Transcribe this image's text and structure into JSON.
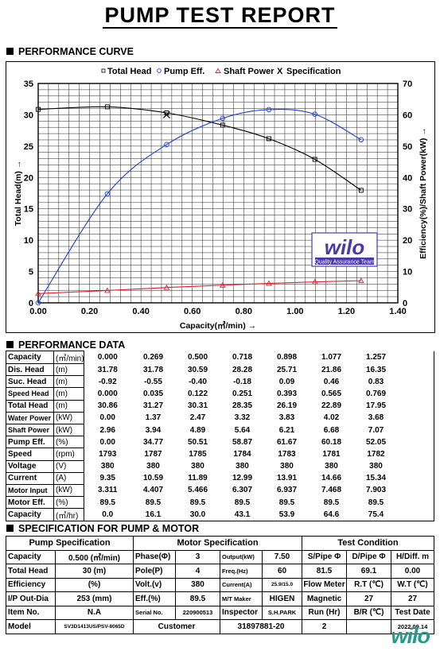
{
  "title": "PUMP TEST REPORT",
  "sections": {
    "curve": "PERFORMANCE CURVE",
    "data": "PERFORMANCE DATA",
    "spec": "SPECIFICATION FOR PUMP & MOTOR"
  },
  "chart_data": {
    "type": "line",
    "legend": [
      "Total Head",
      "Pump Eff.",
      "Shaft Power",
      "Specification"
    ],
    "legend_placement": "top",
    "xlabel": "Capacity(㎥/min) →",
    "ylabel": "Total Head(m) →",
    "y2label": "Efficiency(%)/Shaft Power(kW) →",
    "xlim": [
      0,
      1.4
    ],
    "ylim": [
      0,
      35
    ],
    "y2lim": [
      0,
      70
    ],
    "x_ticks": [
      "0.00",
      "0.20",
      "0.40",
      "0.60",
      "0.80",
      "1.00",
      "1.20",
      "1.40"
    ],
    "y_ticks": [
      "0",
      "5",
      "10",
      "15",
      "20",
      "25",
      "30",
      "35"
    ],
    "y2_ticks": [
      "0",
      "10",
      "20",
      "30",
      "40",
      "50",
      "60",
      "70"
    ],
    "grid": true,
    "series": [
      {
        "name": "Total Head",
        "axis": "left",
        "color": "#000000",
        "marker": "square",
        "x": [
          0.0,
          0.269,
          0.5,
          0.718,
          0.898,
          1.077,
          1.257
        ],
        "values": [
          30.86,
          31.27,
          30.31,
          28.35,
          26.19,
          22.89,
          17.95
        ]
      },
      {
        "name": "Pump Eff.",
        "axis": "right",
        "color": "#1e3cdc",
        "marker": "circle",
        "x": [
          0.0,
          0.269,
          0.5,
          0.718,
          0.898,
          1.077,
          1.257
        ],
        "values": [
          0.0,
          34.77,
          50.51,
          58.87,
          61.67,
          60.18,
          52.05
        ]
      },
      {
        "name": "Shaft Power",
        "axis": "right",
        "color": "#e0202a",
        "marker": "triangle",
        "x": [
          0.0,
          0.269,
          0.5,
          0.718,
          0.898,
          1.077,
          1.257
        ],
        "values": [
          2.96,
          3.94,
          4.89,
          5.64,
          6.21,
          6.68,
          7.07
        ]
      }
    ],
    "specification_point": {
      "x": 0.5,
      "y": 30
    }
  },
  "wilo_badge": {
    "brand": "wilo",
    "caption": "Quality Assurance Team"
  },
  "performance_data": {
    "rows": [
      {
        "label": "Capacity",
        "unit": "(㎥/min)",
        "values": [
          "0.000",
          "0.269",
          "0.500",
          "0.718",
          "0.898",
          "1.077",
          "1.257"
        ]
      },
      {
        "label": "Dis. Head",
        "unit": "(m)",
        "values": [
          "31.78",
          "31.78",
          "30.59",
          "28.28",
          "25.71",
          "21.86",
          "16.35"
        ]
      },
      {
        "label": "Suc. Head",
        "unit": "(m)",
        "values": [
          "-0.92",
          "-0.55",
          "-0.40",
          "-0.18",
          "0.09",
          "0.46",
          "0.83"
        ]
      },
      {
        "label": "Speed Head",
        "unit": "(m)",
        "values": [
          "0.000",
          "0.035",
          "0.122",
          "0.251",
          "0.393",
          "0.565",
          "0.769"
        ]
      },
      {
        "label": "Total Head",
        "unit": "(m)",
        "values": [
          "30.86",
          "31.27",
          "30.31",
          "28.35",
          "26.19",
          "22.89",
          "17.95"
        ]
      },
      {
        "label": "Water Power",
        "unit": "(kW)",
        "values": [
          "0.00",
          "1.37",
          "2.47",
          "3.32",
          "3.83",
          "4.02",
          "3.68"
        ]
      },
      {
        "label": "Shaft Power",
        "unit": "(kW)",
        "values": [
          "2.96",
          "3.94",
          "4.89",
          "5.64",
          "6.21",
          "6.68",
          "7.07"
        ]
      },
      {
        "label": "Pump Eff.",
        "unit": "(%)",
        "values": [
          "0.00",
          "34.77",
          "50.51",
          "58.87",
          "61.67",
          "60.18",
          "52.05"
        ]
      },
      {
        "label": "Speed",
        "unit": "(rpm)",
        "values": [
          "1793",
          "1787",
          "1785",
          "1784",
          "1783",
          "1781",
          "1782"
        ]
      },
      {
        "label": "Voltage",
        "unit": "(V)",
        "values": [
          "380",
          "380",
          "380",
          "380",
          "380",
          "380",
          "380"
        ]
      },
      {
        "label": "Current",
        "unit": "(A)",
        "values": [
          "9.35",
          "10.59",
          "11.89",
          "12.99",
          "13.91",
          "14.66",
          "15.34"
        ]
      },
      {
        "label": "Motor Input",
        "unit": "(kW)",
        "values": [
          "3.311",
          "4.407",
          "5.466",
          "6.307",
          "6.937",
          "7.468",
          "7.903"
        ]
      },
      {
        "label": "Motor Eff.",
        "unit": "(%)",
        "values": [
          "89.5",
          "89.5",
          "89.5",
          "89.5",
          "89.5",
          "89.5",
          "89.5"
        ]
      },
      {
        "label": "Capacity",
        "unit": "(㎥/hr)",
        "values": [
          "0.0",
          "16.1",
          "30.0",
          "43.1",
          "53.9",
          "64.6",
          "75.4"
        ]
      }
    ]
  },
  "spec": {
    "headers": {
      "pump": "Pump Specification",
      "motor": "Motor Specification",
      "test": "Test Condition"
    },
    "r1": [
      "Capacity",
      "0.500 (㎥/min)",
      "Phase(Φ)",
      "3",
      "Output(kW)",
      "7.50",
      "S/Pipe Φ",
      "D/Pipe Φ",
      "H/Diff. m"
    ],
    "r2": [
      "Total Head",
      "30 (m)",
      "Pole(P)",
      "4",
      "Freq.(Hz)",
      "60",
      "81.5",
      "69.1",
      "0.00"
    ],
    "r3": [
      "Efficiency",
      "(%)",
      "Volt.(v)",
      "380",
      "Current(A)",
      "25.9/15.0",
      "Flow Meter",
      "R.T (℃)",
      "W.T (℃)"
    ],
    "r4": [
      "I/P Out-Dia",
      "253 (mm)",
      "Eff.(%)",
      "89.5",
      "M/T Maker",
      "HIGEN",
      "Magnetic",
      "27",
      "27"
    ],
    "r5": [
      "Item No.",
      "N.A",
      "Serial No.",
      "220900513",
      "Inspector",
      "S.H.PARK",
      "Run (Hr)",
      "B/R (℃)",
      "Test Date"
    ],
    "r6": [
      "Model",
      "SV3D1413US/PSV-8065D",
      "Customer",
      "31897881-20",
      "2",
      "2022.09.14"
    ]
  },
  "footer_logo": "wilo"
}
